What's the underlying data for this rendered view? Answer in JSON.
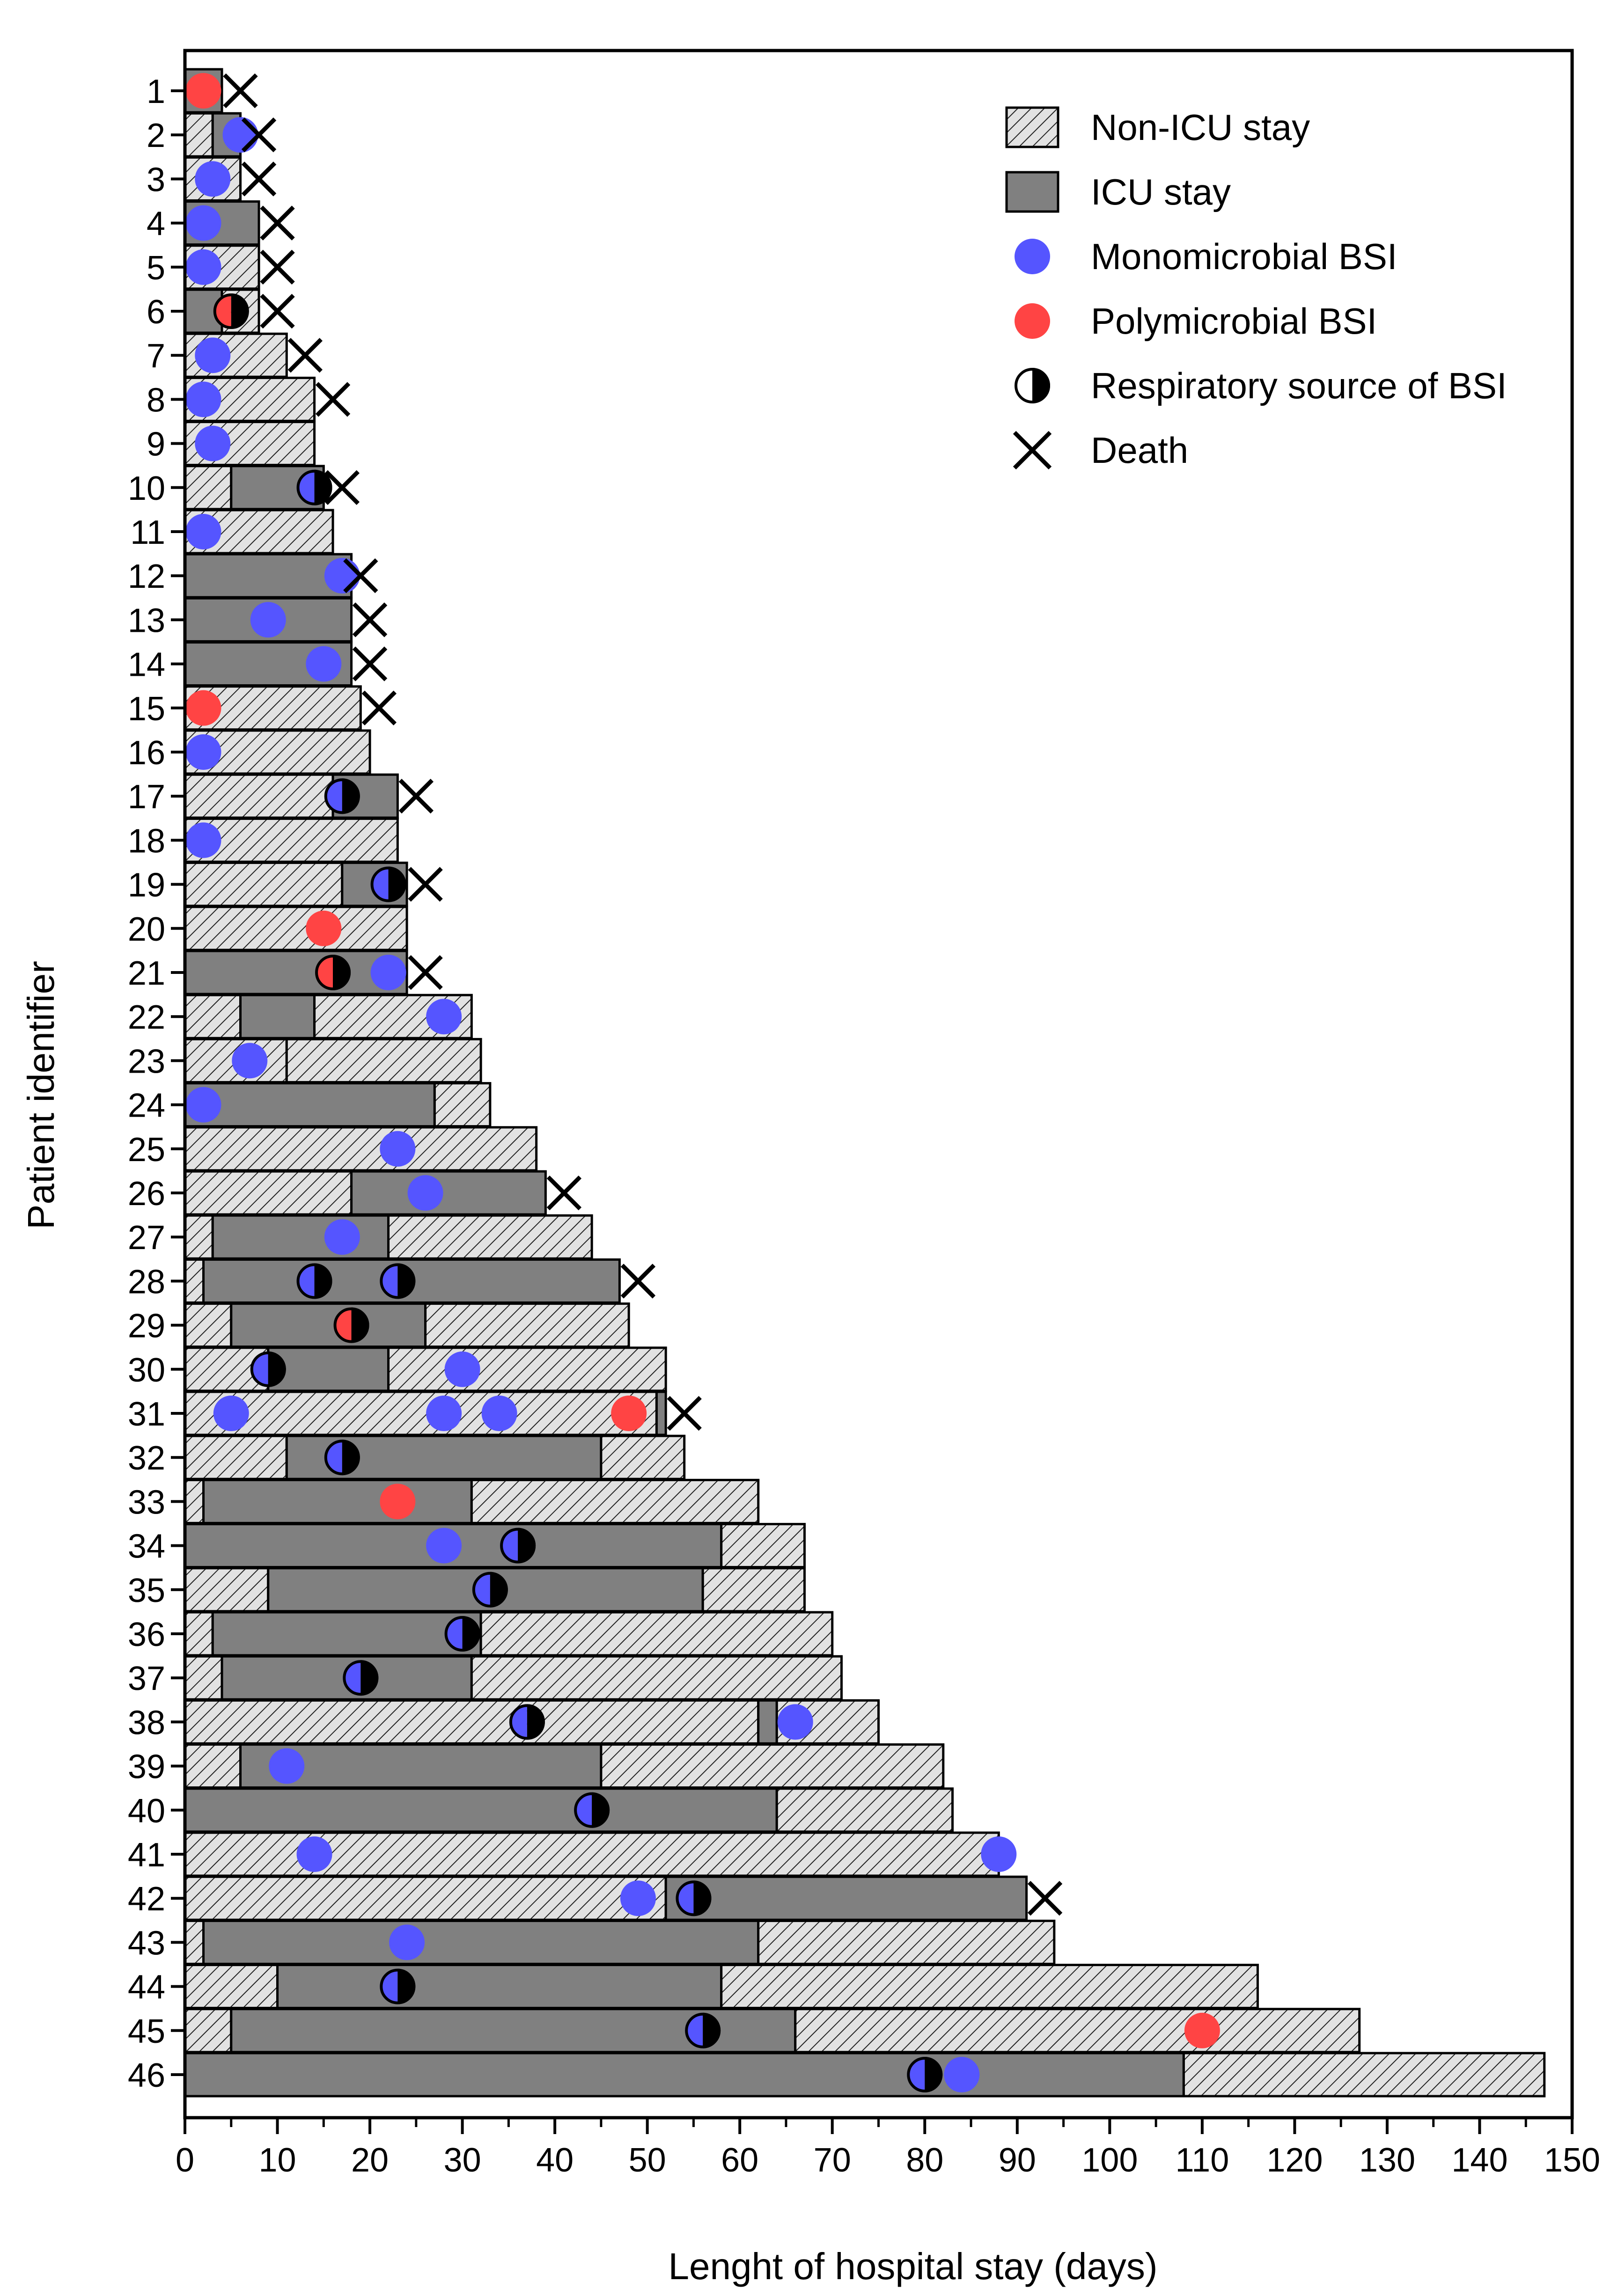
{
  "chart_data": {
    "type": "timeline-bar",
    "title": "",
    "xlabel": "Lenght of hospital stay (days)",
    "ylabel": "Patient identifier",
    "xlim": [
      0,
      150
    ],
    "xticks": [
      0,
      10,
      20,
      30,
      40,
      50,
      60,
      70,
      80,
      90,
      100,
      110,
      120,
      130,
      140,
      150
    ],
    "legend": {
      "position": "top-right",
      "items": [
        {
          "key": "non_icu",
          "label": "Non-ICU stay"
        },
        {
          "key": "icu",
          "label": "ICU stay"
        },
        {
          "key": "mono",
          "label": "Monomicrobial BSI"
        },
        {
          "key": "poly",
          "label": "Polymicrobial BSI"
        },
        {
          "key": "resp",
          "label": "Respiratory source of BSI"
        },
        {
          "key": "death",
          "label": "Death"
        }
      ]
    },
    "colors": {
      "icu": "#808080",
      "non_icu_bg": "#e2e2e2",
      "hatch": "#222222",
      "mono": "#5555ff",
      "poly": "#ff4444",
      "outline": "#000000"
    },
    "patients": [
      {
        "id": "1",
        "segments": [
          [
            0,
            4,
            "icu"
          ]
        ],
        "events": [
          {
            "x": 2,
            "type": "poly",
            "resp": false
          }
        ],
        "death": 6
      },
      {
        "id": "2",
        "segments": [
          [
            0,
            3,
            "non_icu"
          ],
          [
            3,
            6,
            "icu"
          ]
        ],
        "events": [
          {
            "x": 6,
            "type": "mono",
            "resp": false
          }
        ],
        "death": 8
      },
      {
        "id": "3",
        "segments": [
          [
            0,
            6,
            "non_icu"
          ]
        ],
        "events": [
          {
            "x": 3,
            "type": "mono",
            "resp": false
          }
        ],
        "death": 8
      },
      {
        "id": "4",
        "segments": [
          [
            0,
            8,
            "icu"
          ]
        ],
        "events": [
          {
            "x": 2,
            "type": "mono",
            "resp": false
          }
        ],
        "death": 10
      },
      {
        "id": "5",
        "segments": [
          [
            0,
            8,
            "non_icu"
          ]
        ],
        "events": [
          {
            "x": 2,
            "type": "mono",
            "resp": false
          }
        ],
        "death": 10
      },
      {
        "id": "6",
        "segments": [
          [
            0,
            4,
            "icu"
          ],
          [
            4,
            8,
            "non_icu"
          ]
        ],
        "events": [
          {
            "x": 5,
            "type": "poly",
            "resp": true
          }
        ],
        "death": 10
      },
      {
        "id": "7",
        "segments": [
          [
            0,
            11,
            "non_icu"
          ]
        ],
        "events": [
          {
            "x": 3,
            "type": "mono",
            "resp": false
          }
        ],
        "death": 13
      },
      {
        "id": "8",
        "segments": [
          [
            0,
            14,
            "non_icu"
          ]
        ],
        "events": [
          {
            "x": 2,
            "type": "mono",
            "resp": false
          }
        ],
        "death": 16
      },
      {
        "id": "9",
        "segments": [
          [
            0,
            14,
            "non_icu"
          ]
        ],
        "events": [
          {
            "x": 3,
            "type": "mono",
            "resp": false
          }
        ],
        "death": null
      },
      {
        "id": "10",
        "segments": [
          [
            0,
            5,
            "non_icu"
          ],
          [
            5,
            15,
            "icu"
          ]
        ],
        "events": [
          {
            "x": 14,
            "type": "mono",
            "resp": true
          }
        ],
        "death": 17
      },
      {
        "id": "11",
        "segments": [
          [
            0,
            16,
            "non_icu"
          ]
        ],
        "events": [
          {
            "x": 2,
            "type": "mono",
            "resp": false
          }
        ],
        "death": null
      },
      {
        "id": "12",
        "segments": [
          [
            0,
            18,
            "icu"
          ]
        ],
        "events": [
          {
            "x": 17,
            "type": "mono",
            "resp": false
          }
        ],
        "death": 19
      },
      {
        "id": "13",
        "segments": [
          [
            0,
            18,
            "icu"
          ]
        ],
        "events": [
          {
            "x": 9,
            "type": "mono",
            "resp": false
          }
        ],
        "death": 20
      },
      {
        "id": "14",
        "segments": [
          [
            0,
            18,
            "icu"
          ]
        ],
        "events": [
          {
            "x": 15,
            "type": "mono",
            "resp": false
          }
        ],
        "death": 20
      },
      {
        "id": "15",
        "segments": [
          [
            0,
            19,
            "non_icu"
          ]
        ],
        "events": [
          {
            "x": 2,
            "type": "poly",
            "resp": false
          }
        ],
        "death": 21
      },
      {
        "id": "16",
        "segments": [
          [
            0,
            20,
            "non_icu"
          ]
        ],
        "events": [
          {
            "x": 2,
            "type": "mono",
            "resp": false
          }
        ],
        "death": null
      },
      {
        "id": "17",
        "segments": [
          [
            0,
            16,
            "non_icu"
          ],
          [
            16,
            23,
            "icu"
          ]
        ],
        "events": [
          {
            "x": 17,
            "type": "mono",
            "resp": true
          }
        ],
        "death": 25
      },
      {
        "id": "18",
        "segments": [
          [
            0,
            23,
            "non_icu"
          ]
        ],
        "events": [
          {
            "x": 2,
            "type": "mono",
            "resp": false
          }
        ],
        "death": null
      },
      {
        "id": "19",
        "segments": [
          [
            0,
            17,
            "non_icu"
          ],
          [
            17,
            24,
            "icu"
          ]
        ],
        "events": [
          {
            "x": 22,
            "type": "mono",
            "resp": true
          }
        ],
        "death": 26
      },
      {
        "id": "20",
        "segments": [
          [
            0,
            24,
            "non_icu"
          ]
        ],
        "events": [
          {
            "x": 15,
            "type": "poly",
            "resp": false
          }
        ],
        "death": null
      },
      {
        "id": "21",
        "segments": [
          [
            0,
            24,
            "icu"
          ]
        ],
        "events": [
          {
            "x": 16,
            "type": "poly",
            "resp": true
          },
          {
            "x": 22,
            "type": "mono",
            "resp": false
          }
        ],
        "death": 26
      },
      {
        "id": "22",
        "segments": [
          [
            0,
            6,
            "non_icu"
          ],
          [
            6,
            14,
            "icu"
          ],
          [
            14,
            31,
            "non_icu"
          ]
        ],
        "events": [
          {
            "x": 28,
            "type": "mono",
            "resp": false
          }
        ],
        "death": null
      },
      {
        "id": "23",
        "segments": [
          [
            0,
            11,
            "non_icu"
          ],
          [
            11,
            32,
            "non_icu"
          ]
        ],
        "events": [
          {
            "x": 7,
            "type": "mono",
            "resp": false
          }
        ],
        "death": null
      },
      {
        "id": "24",
        "segments": [
          [
            0,
            27,
            "icu"
          ],
          [
            27,
            33,
            "non_icu"
          ]
        ],
        "events": [
          {
            "x": 2,
            "type": "mono",
            "resp": false
          }
        ],
        "death": null
      },
      {
        "id": "25",
        "segments": [
          [
            0,
            38,
            "non_icu"
          ]
        ],
        "events": [
          {
            "x": 23,
            "type": "mono",
            "resp": false
          }
        ],
        "death": null
      },
      {
        "id": "26",
        "segments": [
          [
            0,
            18,
            "non_icu"
          ],
          [
            18,
            39,
            "icu"
          ]
        ],
        "events": [
          {
            "x": 26,
            "type": "mono",
            "resp": false
          }
        ],
        "death": 41
      },
      {
        "id": "27",
        "segments": [
          [
            0,
            3,
            "non_icu"
          ],
          [
            3,
            22,
            "icu"
          ],
          [
            22,
            44,
            "non_icu"
          ]
        ],
        "events": [
          {
            "x": 17,
            "type": "mono",
            "resp": false
          }
        ],
        "death": null
      },
      {
        "id": "28",
        "segments": [
          [
            0,
            2,
            "non_icu"
          ],
          [
            2,
            47,
            "icu"
          ]
        ],
        "events": [
          {
            "x": 14,
            "type": "mono",
            "resp": true
          },
          {
            "x": 23,
            "type": "mono",
            "resp": true
          }
        ],
        "death": 49
      },
      {
        "id": "29",
        "segments": [
          [
            0,
            5,
            "non_icu"
          ],
          [
            5,
            26,
            "icu"
          ],
          [
            26,
            48,
            "non_icu"
          ]
        ],
        "events": [
          {
            "x": 18,
            "type": "poly",
            "resp": true
          }
        ],
        "death": null
      },
      {
        "id": "30",
        "segments": [
          [
            0,
            9,
            "non_icu"
          ],
          [
            9,
            22,
            "icu"
          ],
          [
            22,
            52,
            "non_icu"
          ]
        ],
        "events": [
          {
            "x": 9,
            "type": "mono",
            "resp": true
          },
          {
            "x": 30,
            "type": "mono",
            "resp": false
          }
        ],
        "death": null
      },
      {
        "id": "31",
        "segments": [
          [
            0,
            51,
            "non_icu"
          ],
          [
            51,
            52,
            "icu"
          ]
        ],
        "events": [
          {
            "x": 5,
            "type": "mono",
            "resp": false
          },
          {
            "x": 28,
            "type": "mono",
            "resp": false
          },
          {
            "x": 34,
            "type": "mono",
            "resp": false
          },
          {
            "x": 48,
            "type": "poly",
            "resp": false
          }
        ],
        "death": 54
      },
      {
        "id": "32",
        "segments": [
          [
            0,
            11,
            "non_icu"
          ],
          [
            11,
            45,
            "icu"
          ],
          [
            45,
            54,
            "non_icu"
          ]
        ],
        "events": [
          {
            "x": 17,
            "type": "mono",
            "resp": true
          }
        ],
        "death": null
      },
      {
        "id": "33",
        "segments": [
          [
            0,
            2,
            "non_icu"
          ],
          [
            2,
            31,
            "icu"
          ],
          [
            31,
            62,
            "non_icu"
          ]
        ],
        "events": [
          {
            "x": 23,
            "type": "poly",
            "resp": false
          }
        ],
        "death": null
      },
      {
        "id": "34",
        "segments": [
          [
            0,
            58,
            "icu"
          ],
          [
            58,
            67,
            "non_icu"
          ]
        ],
        "events": [
          {
            "x": 28,
            "type": "mono",
            "resp": false
          },
          {
            "x": 36,
            "type": "mono",
            "resp": true
          }
        ],
        "death": null
      },
      {
        "id": "35",
        "segments": [
          [
            0,
            9,
            "non_icu"
          ],
          [
            9,
            56,
            "icu"
          ],
          [
            56,
            67,
            "non_icu"
          ]
        ],
        "events": [
          {
            "x": 33,
            "type": "mono",
            "resp": true
          }
        ],
        "death": null
      },
      {
        "id": "36",
        "segments": [
          [
            0,
            3,
            "non_icu"
          ],
          [
            3,
            32,
            "icu"
          ],
          [
            32,
            70,
            "non_icu"
          ]
        ],
        "events": [
          {
            "x": 30,
            "type": "mono",
            "resp": true
          }
        ],
        "death": null
      },
      {
        "id": "37",
        "segments": [
          [
            0,
            4,
            "non_icu"
          ],
          [
            4,
            31,
            "icu"
          ],
          [
            31,
            71,
            "non_icu"
          ]
        ],
        "events": [
          {
            "x": 19,
            "type": "mono",
            "resp": true
          }
        ],
        "death": null
      },
      {
        "id": "38",
        "segments": [
          [
            0,
            62,
            "non_icu"
          ],
          [
            62,
            64,
            "icu"
          ],
          [
            64,
            75,
            "non_icu"
          ]
        ],
        "events": [
          {
            "x": 37,
            "type": "mono",
            "resp": true
          },
          {
            "x": 66,
            "type": "mono",
            "resp": false
          }
        ],
        "death": null
      },
      {
        "id": "39",
        "segments": [
          [
            0,
            6,
            "non_icu"
          ],
          [
            6,
            45,
            "icu"
          ],
          [
            45,
            82,
            "non_icu"
          ]
        ],
        "events": [
          {
            "x": 11,
            "type": "mono",
            "resp": false
          }
        ],
        "death": null
      },
      {
        "id": "40",
        "segments": [
          [
            0,
            64,
            "icu"
          ],
          [
            64,
            83,
            "non_icu"
          ]
        ],
        "events": [
          {
            "x": 44,
            "type": "mono",
            "resp": true
          }
        ],
        "death": null
      },
      {
        "id": "41",
        "segments": [
          [
            0,
            88,
            "non_icu"
          ]
        ],
        "events": [
          {
            "x": 14,
            "type": "mono",
            "resp": false
          },
          {
            "x": 88,
            "type": "mono",
            "resp": false
          }
        ],
        "death": null
      },
      {
        "id": "42",
        "segments": [
          [
            0,
            52,
            "non_icu"
          ],
          [
            52,
            91,
            "icu"
          ]
        ],
        "events": [
          {
            "x": 49,
            "type": "mono",
            "resp": false
          },
          {
            "x": 55,
            "type": "mono",
            "resp": true
          }
        ],
        "death": 93
      },
      {
        "id": "43",
        "segments": [
          [
            0,
            2,
            "non_icu"
          ],
          [
            2,
            62,
            "icu"
          ],
          [
            62,
            94,
            "non_icu"
          ]
        ],
        "events": [
          {
            "x": 24,
            "type": "mono",
            "resp": false
          }
        ],
        "death": null
      },
      {
        "id": "44",
        "segments": [
          [
            0,
            10,
            "non_icu"
          ],
          [
            10,
            58,
            "icu"
          ],
          [
            58,
            116,
            "non_icu"
          ]
        ],
        "events": [
          {
            "x": 23,
            "type": "mono",
            "resp": true
          }
        ],
        "death": null
      },
      {
        "id": "45",
        "segments": [
          [
            0,
            5,
            "non_icu"
          ],
          [
            5,
            66,
            "icu"
          ],
          [
            66,
            127,
            "non_icu"
          ]
        ],
        "events": [
          {
            "x": 56,
            "type": "mono",
            "resp": true
          },
          {
            "x": 110,
            "type": "poly",
            "resp": false
          }
        ],
        "death": null
      },
      {
        "id": "46",
        "segments": [
          [
            0,
            108,
            "icu"
          ],
          [
            108,
            147,
            "non_icu"
          ]
        ],
        "events": [
          {
            "x": 80,
            "type": "mono",
            "resp": true
          },
          {
            "x": 84,
            "type": "mono",
            "resp": false
          }
        ],
        "death": null
      }
    ]
  }
}
